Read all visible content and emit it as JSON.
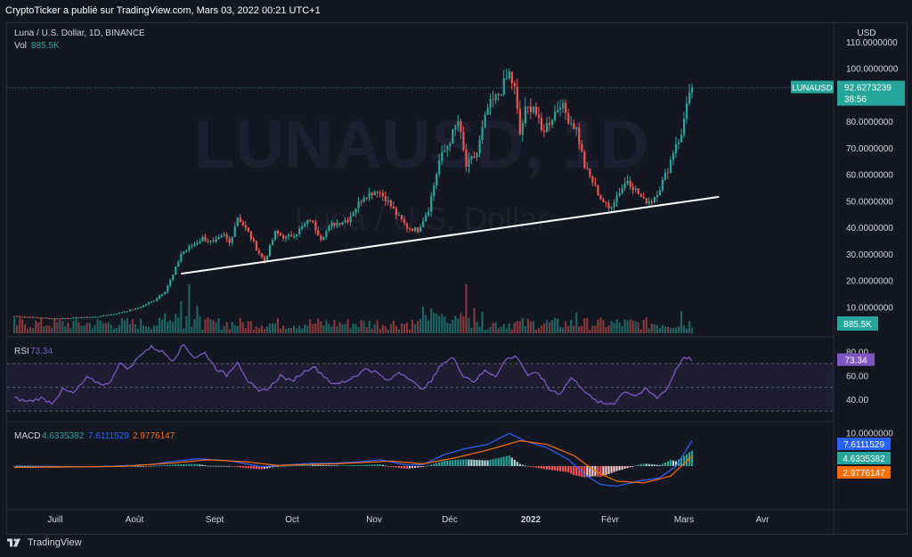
{
  "header": {
    "publisher_line": "CryptoTicker a publié sur TradingView.com, Mars 03, 2022 00:21 UTC+1"
  },
  "footer": {
    "brand": "TradingView"
  },
  "colors": {
    "up": "#26a69a",
    "down": "#ef5350",
    "rsi": "#7e57c2",
    "macd": "#2962ff",
    "signal": "#ff6d00",
    "background": "#131722"
  },
  "chart_data": [
    {
      "type": "candlestick",
      "title": "Luna / U.S. Dollar, 1D, BINANCE",
      "watermark": "LUNAUSD, 1D",
      "watermark_sub": "Luna / U.S. Dollar",
      "volume_label": "Vol",
      "volume_value": "885.5K",
      "currency_label": "USD",
      "x_ticks": [
        "Juill",
        "Août",
        "Sept",
        "Oct",
        "Nov",
        "Déc",
        "2022",
        "Févr",
        "Mars",
        "Avr"
      ],
      "y_ticks": [
        "10.0000000",
        "20.0000000",
        "30.0000000",
        "40.0000000",
        "50.0000000",
        "60.0000000",
        "70.0000000",
        "80.0000000",
        "90.0000000",
        "100.0000000",
        "110.0000000"
      ],
      "ylim": [
        0,
        113
      ],
      "price_label": {
        "symbol": "LUNAUSD",
        "price": "92.6273239",
        "countdown": "38:56"
      },
      "price_anchors": [
        {
          "d": 0,
          "p": 6.5
        },
        {
          "d": 15,
          "p": 5.5
        },
        {
          "d": 30,
          "p": 6.2
        },
        {
          "d": 38,
          "p": 7.5
        },
        {
          "d": 46,
          "p": 9.5
        },
        {
          "d": 52,
          "p": 12.5
        },
        {
          "d": 56,
          "p": 16
        },
        {
          "d": 59,
          "p": 22
        },
        {
          "d": 62,
          "p": 30
        },
        {
          "d": 66,
          "p": 33
        },
        {
          "d": 70,
          "p": 36
        },
        {
          "d": 74,
          "p": 34
        },
        {
          "d": 78,
          "p": 37
        },
        {
          "d": 80,
          "p": 34
        },
        {
          "d": 83,
          "p": 44
        },
        {
          "d": 87,
          "p": 38
        },
        {
          "d": 90,
          "p": 32
        },
        {
          "d": 93,
          "p": 27
        },
        {
          "d": 97,
          "p": 38
        },
        {
          "d": 101,
          "p": 36
        },
        {
          "d": 105,
          "p": 38
        },
        {
          "d": 110,
          "p": 43
        },
        {
          "d": 114,
          "p": 36
        },
        {
          "d": 118,
          "p": 41
        },
        {
          "d": 124,
          "p": 43
        },
        {
          "d": 130,
          "p": 52
        },
        {
          "d": 135,
          "p": 54
        },
        {
          "d": 138,
          "p": 51
        },
        {
          "d": 142,
          "p": 45
        },
        {
          "d": 146,
          "p": 40
        },
        {
          "d": 150,
          "p": 39
        },
        {
          "d": 154,
          "p": 47
        },
        {
          "d": 158,
          "p": 65
        },
        {
          "d": 162,
          "p": 73
        },
        {
          "d": 165,
          "p": 80
        },
        {
          "d": 168,
          "p": 63
        },
        {
          "d": 172,
          "p": 68
        },
        {
          "d": 176,
          "p": 85
        },
        {
          "d": 180,
          "p": 90
        },
        {
          "d": 184,
          "p": 98
        },
        {
          "d": 186,
          "p": 92
        },
        {
          "d": 188,
          "p": 75
        },
        {
          "d": 190,
          "p": 84
        },
        {
          "d": 193,
          "p": 86
        },
        {
          "d": 196,
          "p": 76
        },
        {
          "d": 199,
          "p": 80
        },
        {
          "d": 203,
          "p": 87
        },
        {
          "d": 206,
          "p": 81
        },
        {
          "d": 209,
          "p": 77
        },
        {
          "d": 212,
          "p": 63
        },
        {
          "d": 215,
          "p": 57
        },
        {
          "d": 218,
          "p": 51
        },
        {
          "d": 221,
          "p": 47
        },
        {
          "d": 224,
          "p": 52
        },
        {
          "d": 228,
          "p": 58
        },
        {
          "d": 231,
          "p": 54
        },
        {
          "d": 234,
          "p": 50
        },
        {
          "d": 237,
          "p": 50
        },
        {
          "d": 240,
          "p": 55
        },
        {
          "d": 243,
          "p": 62
        },
        {
          "d": 246,
          "p": 72
        },
        {
          "d": 248,
          "p": 74
        },
        {
          "d": 250,
          "p": 88
        },
        {
          "d": 252,
          "p": 92.6
        }
      ],
      "trendline": {
        "from": {
          "d": 62,
          "p": 22.5
        },
        "to": {
          "d": 262,
          "p": 51.5
        }
      }
    },
    {
      "type": "line",
      "title": "RSI",
      "value": "73.34",
      "y_ticks": [
        "40.00",
        "60.00",
        "80.00"
      ],
      "band": [
        30,
        70
      ],
      "ylim": [
        25,
        85
      ],
      "anchors": [
        {
          "d": 0,
          "v": 41
        },
        {
          "d": 5,
          "v": 38
        },
        {
          "d": 10,
          "v": 41
        },
        {
          "d": 14,
          "v": 37
        },
        {
          "d": 18,
          "v": 48
        },
        {
          "d": 22,
          "v": 45
        },
        {
          "d": 27,
          "v": 58
        },
        {
          "d": 31,
          "v": 54
        },
        {
          "d": 35,
          "v": 52
        },
        {
          "d": 39,
          "v": 70
        },
        {
          "d": 43,
          "v": 66
        },
        {
          "d": 47,
          "v": 78
        },
        {
          "d": 51,
          "v": 84
        },
        {
          "d": 55,
          "v": 80
        },
        {
          "d": 59,
          "v": 73
        },
        {
          "d": 63,
          "v": 86
        },
        {
          "d": 67,
          "v": 75
        },
        {
          "d": 71,
          "v": 79
        },
        {
          "d": 75,
          "v": 66
        },
        {
          "d": 79,
          "v": 60
        },
        {
          "d": 83,
          "v": 72
        },
        {
          "d": 87,
          "v": 55
        },
        {
          "d": 91,
          "v": 46
        },
        {
          "d": 95,
          "v": 50
        },
        {
          "d": 99,
          "v": 60
        },
        {
          "d": 103,
          "v": 55
        },
        {
          "d": 107,
          "v": 62
        },
        {
          "d": 111,
          "v": 68
        },
        {
          "d": 115,
          "v": 60
        },
        {
          "d": 119,
          "v": 52
        },
        {
          "d": 123,
          "v": 55
        },
        {
          "d": 127,
          "v": 60
        },
        {
          "d": 131,
          "v": 66
        },
        {
          "d": 135,
          "v": 62
        },
        {
          "d": 139,
          "v": 55
        },
        {
          "d": 143,
          "v": 63
        },
        {
          "d": 147,
          "v": 58
        },
        {
          "d": 151,
          "v": 48
        },
        {
          "d": 155,
          "v": 55
        },
        {
          "d": 159,
          "v": 70
        },
        {
          "d": 163,
          "v": 75
        },
        {
          "d": 167,
          "v": 60
        },
        {
          "d": 171,
          "v": 55
        },
        {
          "d": 175,
          "v": 64
        },
        {
          "d": 179,
          "v": 60
        },
        {
          "d": 183,
          "v": 74
        },
        {
          "d": 187,
          "v": 76
        },
        {
          "d": 191,
          "v": 60
        },
        {
          "d": 195,
          "v": 62
        },
        {
          "d": 199,
          "v": 48
        },
        {
          "d": 203,
          "v": 45
        },
        {
          "d": 207,
          "v": 58
        },
        {
          "d": 211,
          "v": 50
        },
        {
          "d": 215,
          "v": 40
        },
        {
          "d": 219,
          "v": 36
        },
        {
          "d": 223,
          "v": 37
        },
        {
          "d": 227,
          "v": 47
        },
        {
          "d": 231,
          "v": 43
        },
        {
          "d": 235,
          "v": 48
        },
        {
          "d": 239,
          "v": 41
        },
        {
          "d": 243,
          "v": 50
        },
        {
          "d": 246,
          "v": 65
        },
        {
          "d": 249,
          "v": 76
        },
        {
          "d": 252,
          "v": 73.34
        }
      ]
    },
    {
      "type": "macd",
      "title": "MACD",
      "values": [
        "4.6335382",
        "7.6111529",
        "2.9776147"
      ],
      "y_ticks": [
        "10.0000000"
      ],
      "ylim": [
        -12,
        12
      ],
      "macd_anchors": [
        {
          "d": 0,
          "v": -0.3
        },
        {
          "d": 30,
          "v": -0.2
        },
        {
          "d": 50,
          "v": 0.4
        },
        {
          "d": 60,
          "v": 1.5
        },
        {
          "d": 68,
          "v": 2.2
        },
        {
          "d": 80,
          "v": 1.6
        },
        {
          "d": 92,
          "v": -0.2
        },
        {
          "d": 100,
          "v": 0.3
        },
        {
          "d": 110,
          "v": 0.8
        },
        {
          "d": 120,
          "v": 0.9
        },
        {
          "d": 128,
          "v": 1.3
        },
        {
          "d": 136,
          "v": 1.9
        },
        {
          "d": 146,
          "v": 0.3
        },
        {
          "d": 152,
          "v": 0.5
        },
        {
          "d": 160,
          "v": 3.5
        },
        {
          "d": 168,
          "v": 5.3
        },
        {
          "d": 176,
          "v": 6.5
        },
        {
          "d": 184,
          "v": 9.8
        },
        {
          "d": 190,
          "v": 7.5
        },
        {
          "d": 198,
          "v": 5.5
        },
        {
          "d": 206,
          "v": 2.0
        },
        {
          "d": 212,
          "v": -2.5
        },
        {
          "d": 218,
          "v": -5.5
        },
        {
          "d": 224,
          "v": -6.0
        },
        {
          "d": 232,
          "v": -4.5
        },
        {
          "d": 240,
          "v": -3.5
        },
        {
          "d": 246,
          "v": 0.0
        },
        {
          "d": 252,
          "v": 7.6
        }
      ],
      "signal_anchors": [
        {
          "d": 0,
          "v": -0.4
        },
        {
          "d": 40,
          "v": -0.1
        },
        {
          "d": 60,
          "v": 1.0
        },
        {
          "d": 72,
          "v": 1.9
        },
        {
          "d": 86,
          "v": 1.3
        },
        {
          "d": 98,
          "v": 0.2
        },
        {
          "d": 120,
          "v": 0.7
        },
        {
          "d": 140,
          "v": 1.5
        },
        {
          "d": 152,
          "v": 0.7
        },
        {
          "d": 164,
          "v": 2.5
        },
        {
          "d": 176,
          "v": 4.8
        },
        {
          "d": 188,
          "v": 7.6
        },
        {
          "d": 198,
          "v": 6.5
        },
        {
          "d": 208,
          "v": 3.2
        },
        {
          "d": 216,
          "v": -1.5
        },
        {
          "d": 224,
          "v": -4.5
        },
        {
          "d": 234,
          "v": -5.0
        },
        {
          "d": 244,
          "v": -3.0
        },
        {
          "d": 252,
          "v": 3.0
        }
      ]
    }
  ]
}
